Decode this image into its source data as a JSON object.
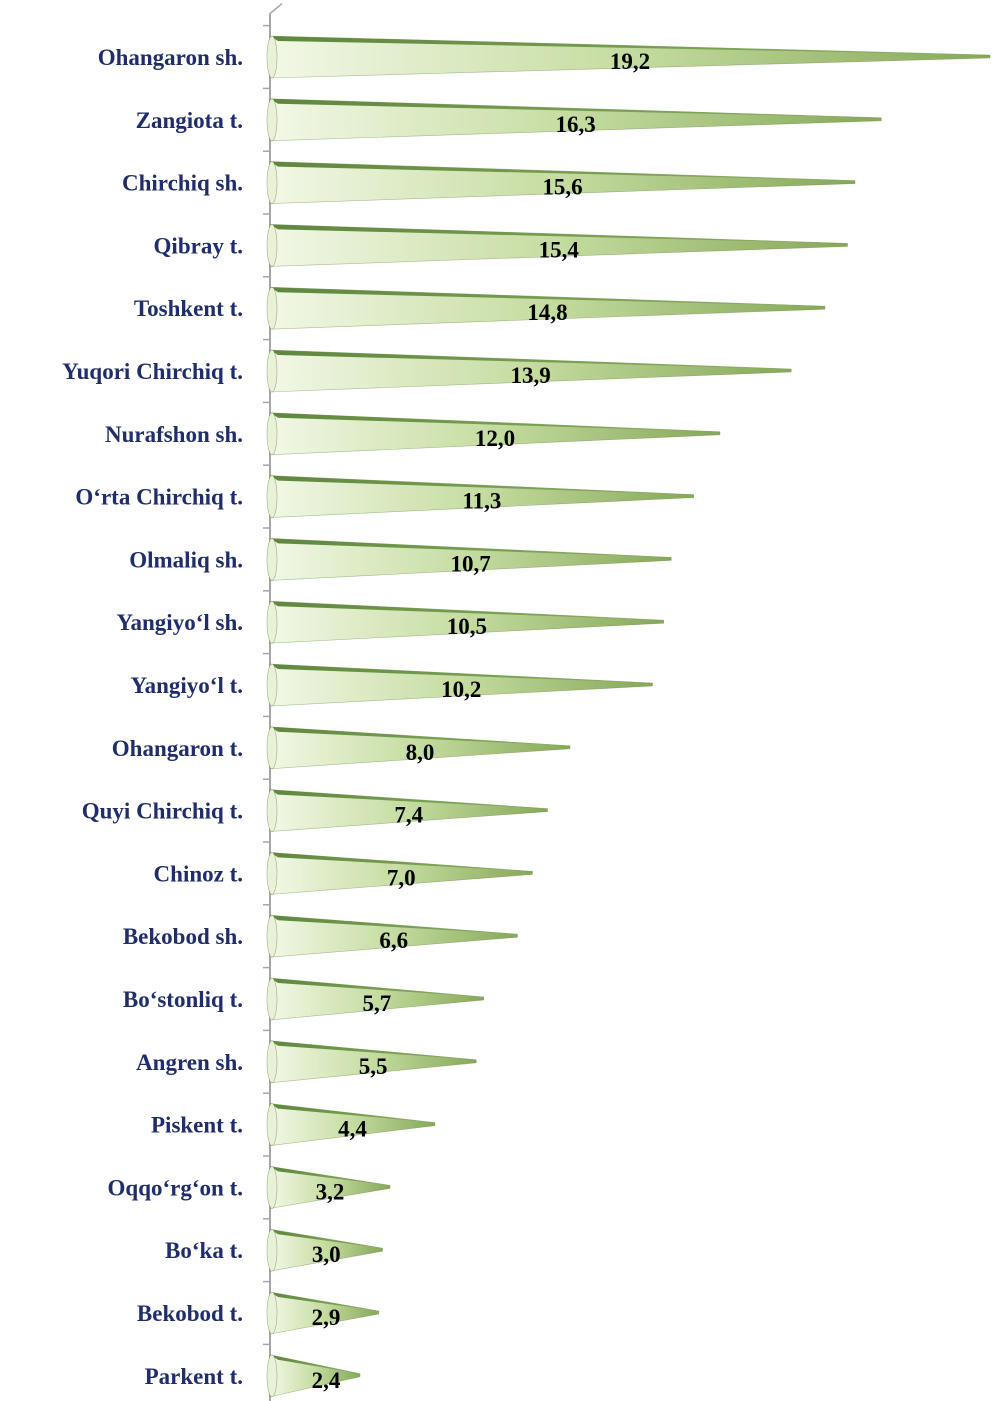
{
  "chart_data": {
    "type": "bar",
    "orientation": "horizontal",
    "categories": [
      "Ohangaron sh.",
      "Zangiota t.",
      "Chirchiq sh.",
      "Qibray t.",
      "Toshkent t.",
      "Yuqori Chirchiq t.",
      "Nurafshon sh.",
      "O‘rta Chirchiq t.",
      "Olmaliq sh.",
      "Yangiyo‘l sh.",
      "Yangiyo‘l t.",
      "Ohangaron t.",
      "Quyi Chirchiq t.",
      "Chinoz t.",
      "Bekobod sh.",
      "Bo‘stonliq t.",
      "Angren sh.",
      "Piskent t.",
      "Oqqo‘rg‘on t.",
      "Bo‘ka t.",
      "Bekobod t.",
      "Parkent t."
    ],
    "values": [
      19.2,
      16.3,
      15.6,
      15.4,
      14.8,
      13.9,
      12.0,
      11.3,
      10.7,
      10.5,
      10.2,
      8.0,
      7.4,
      7.0,
      6.6,
      5.7,
      5.5,
      4.4,
      3.2,
      3.0,
      2.9,
      2.4
    ],
    "value_labels": [
      "19,2",
      "16,3",
      "15,6",
      "15,4",
      "14,8",
      "13,9",
      "12,0",
      "11,3",
      "10,7",
      "10,5",
      "10,2",
      "8,0",
      "7,4",
      "7,0",
      "6,6",
      "5,7",
      "5,5",
      "4,4",
      "3,2",
      "3,0",
      "2,9",
      "2,4"
    ],
    "title": "",
    "xlabel": "",
    "ylabel": "",
    "xlim": [
      0,
      19.2
    ],
    "grid": false,
    "legend": "none",
    "bar_shape": "3d-cone",
    "colors": {
      "bar_light": "#f2f8e6",
      "bar_mid": "#c5dca0",
      "bar_dark": "#86a859",
      "bar_edge": "#5f823a",
      "category_text": "#1f2d6b",
      "axis": "#a6a6a6"
    }
  }
}
